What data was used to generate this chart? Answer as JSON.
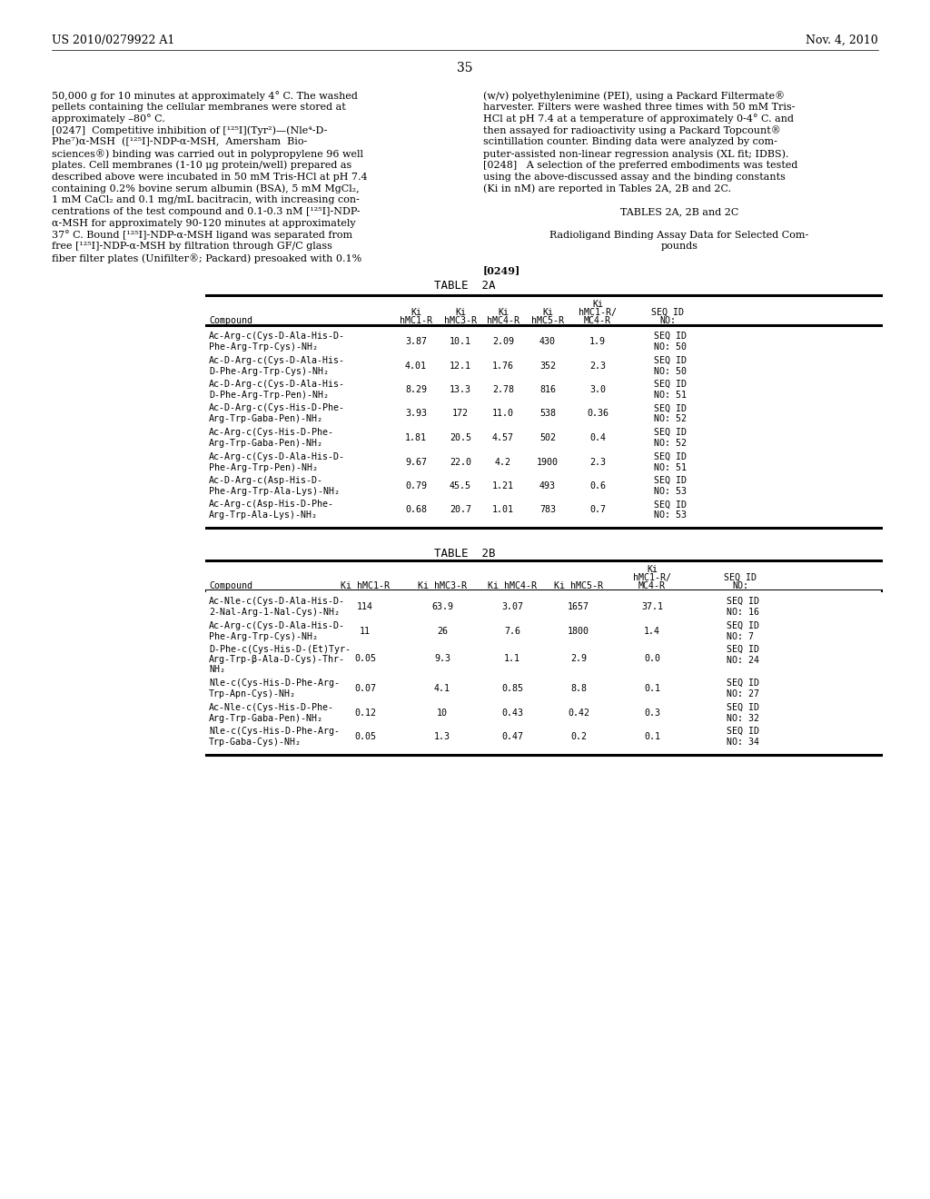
{
  "header_left": "US 2010/0279922 A1",
  "header_right": "Nov. 4, 2010",
  "page_number": "35",
  "body_left": [
    "50,000 g for 10 minutes at approximately 4° C. The washed",
    "pellets containing the cellular membranes were stored at",
    "approximately –80° C.",
    "[0247]  Competitive inhibition of [¹²⁵I](Tyr²)—(Nle⁴-D-",
    "Phe⁷)α-MSH  ([¹²⁵I]-NDP-α-MSH,  Amersham  Bio-",
    "sciences®) binding was carried out in polypropylene 96 well",
    "plates. Cell membranes (1-10 μg protein/well) prepared as",
    "described above were incubated in 50 mM Tris-HCl at pH 7.4",
    "containing 0.2% bovine serum albumin (BSA), 5 mM MgCl₂,",
    "1 mM CaCl₂ and 0.1 mg/mL bacitracin, with increasing con-",
    "centrations of the test compound and 0.1-0.3 nM [¹²⁵I]-NDP-",
    "α-MSH for approximately 90-120 minutes at approximately",
    "37° C. Bound [¹²⁵I]-NDP-α-MSH ligand was separated from",
    "free [¹²⁵I]-NDP-α-MSH by filtration through GF/C glass",
    "fiber filter plates (Unifilter®; Packard) presoaked with 0.1%"
  ],
  "body_right": [
    "(w/v) polyethylenimine (PEI), using a Packard Filtermate®",
    "harvester. Filters were washed three times with 50 mM Tris-",
    "HCl at pH 7.4 at a temperature of approximately 0-4° C. and",
    "then assayed for radioactivity using a Packard Topcount®",
    "scintillation counter. Binding data were analyzed by com-",
    "puter-assisted non-linear regression analysis (XL fit; IDBS).",
    "[0248]   A selection of the preferred embodiments was tested",
    "using the above-discussed assay and the binding constants",
    "(Ki in nM) are reported in Tables 2A, 2B and 2C.",
    "",
    "TABLES 2A, 2B and 2C",
    "",
    "Radioligand Binding Assay Data for Selected Com-",
    "pounds",
    "",
    "[0249]"
  ],
  "t2a_rows": [
    [
      "Ac-Arg-c(Cys-D-Ala-His-D-",
      "Phe-Arg-Trp-Cys)-NH₂",
      "3.87",
      "10.1",
      "2.09",
      "430",
      "1.9",
      "SEQ ID",
      "NO: 50"
    ],
    [
      "Ac-D-Arg-c(Cys-D-Ala-His-",
      "D-Phe-Arg-Trp-Cys)-NH₂",
      "4.01",
      "12.1",
      "1.76",
      "352",
      "2.3",
      "SEQ ID",
      "NO: 50"
    ],
    [
      "Ac-D-Arg-c(Cys-D-Ala-His-",
      "D-Phe-Arg-Trp-Pen)-NH₂",
      "8.29",
      "13.3",
      "2.78",
      "816",
      "3.0",
      "SEQ ID",
      "NO: 51"
    ],
    [
      "Ac-D-Arg-c(Cys-His-D-Phe-",
      "Arg-Trp-Gaba-Pen)-NH₂",
      "3.93",
      "172",
      "11.0",
      "538",
      "0.36",
      "SEQ ID",
      "NO: 52"
    ],
    [
      "Ac-Arg-c(Cys-His-D-Phe-",
      "Arg-Trp-Gaba-Pen)-NH₂",
      "1.81",
      "20.5",
      "4.57",
      "502",
      "0.4",
      "SEQ ID",
      "NO: 52"
    ],
    [
      "Ac-Arg-c(Cys-D-Ala-His-D-",
      "Phe-Arg-Trp-Pen)-NH₂",
      "9.67",
      "22.0",
      "4.2",
      "1900",
      "2.3",
      "SEQ ID",
      "NO: 51"
    ],
    [
      "Ac-D-Arg-c(Asp-His-D-",
      "Phe-Arg-Trp-Ala-Lys)-NH₂",
      "0.79",
      "45.5",
      "1.21",
      "493",
      "0.6",
      "SEQ ID",
      "NO: 53"
    ],
    [
      "Ac-Arg-c(Asp-His-D-Phe-",
      "Arg-Trp-Ala-Lys)-NH₂",
      "0.68",
      "20.7",
      "1.01",
      "783",
      "0.7",
      "SEQ ID",
      "NO: 53"
    ]
  ],
  "t2b_rows": [
    [
      "Ac-Nle-c(Cys-D-Ala-His-D-",
      "2-Nal-Arg-1-Nal-Cys)-NH₂",
      "114",
      "63.9",
      "3.07",
      "1657",
      "37.1",
      "SEQ ID",
      "NO: 16"
    ],
    [
      "Ac-Arg-c(Cys-D-Ala-His-D-",
      "Phe-Arg-Trp-Cys)-NH₂",
      "11",
      "26",
      "7.6",
      "1800",
      "1.4",
      "SEQ ID",
      "NO: 7"
    ],
    [
      "D-Phe-c(Cys-His-D-(Et)Tyr-",
      "Arg-Trp-β-Ala-D-Cys)-Thr-",
      "NH₂",
      "0.05",
      "9.3",
      "1.1",
      "2.9",
      "0.0",
      "SEQ ID",
      "NO: 24"
    ],
    [
      "Nle-c(Cys-His-D-Phe-Arg-",
      "Trp-Apn-Cys)-NH₂",
      "0.07",
      "4.1",
      "0.85",
      "8.8",
      "0.1",
      "SEQ ID",
      "NO: 27"
    ],
    [
      "Ac-Nle-c(Cys-His-D-Phe-",
      "Arg-Trp-Gaba-Pen)-NH₂",
      "0.12",
      "10",
      "0.43",
      "0.42",
      "0.3",
      "SEQ ID",
      "NO: 32"
    ],
    [
      "Nle-c(Cys-His-D-Phe-Arg-",
      "Trp-Gaba-Cys)-NH₂",
      "0.05",
      "1.3",
      "0.47",
      "0.2",
      "0.1",
      "SEQ ID",
      "NO: 34"
    ]
  ]
}
